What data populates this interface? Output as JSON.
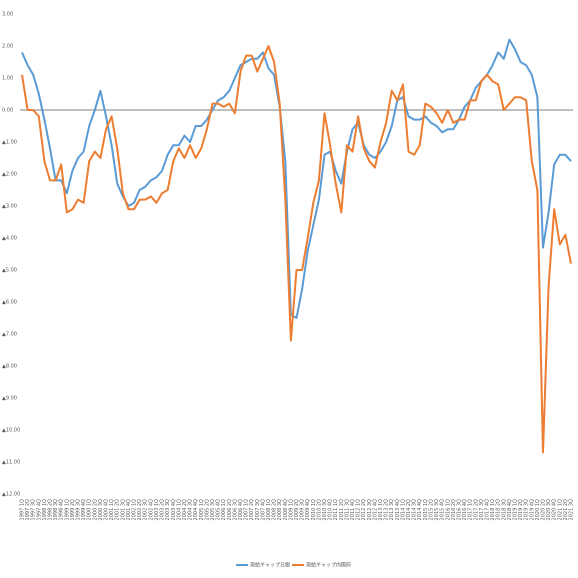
{
  "chart_data": {
    "type": "line",
    "categories": [
      "1997 1Q",
      "1997 2Q",
      "1997 3Q",
      "1997 4Q",
      "1998 1Q",
      "1998 2Q",
      "1998 3Q",
      "1998 4Q",
      "1999 1Q",
      "1999 2Q",
      "1999 3Q",
      "1999 4Q",
      "2000 1Q",
      "2000 2Q",
      "2000 3Q",
      "2000 4Q",
      "2001 1Q",
      "2001 2Q",
      "2001 3Q",
      "2001 4Q",
      "2002 1Q",
      "2002 2Q",
      "2002 3Q",
      "2002 4Q",
      "2003 1Q",
      "2003 2Q",
      "2003 3Q",
      "2003 4Q",
      "2004 1Q",
      "2004 2Q",
      "2004 3Q",
      "2004 4Q",
      "2005 1Q",
      "2005 2Q",
      "2005 3Q",
      "2005 4Q",
      "2006 1Q",
      "2006 2Q",
      "2006 3Q",
      "2006 4Q",
      "2007 1Q",
      "2007 2Q",
      "2007 3Q",
      "2007 4Q",
      "2008 1Q",
      "2008 2Q",
      "2008 3Q",
      "2008 4Q",
      "2009 1Q",
      "2009 2Q",
      "2009 3Q",
      "2009 4Q",
      "2010 1Q",
      "2010 2Q",
      "2010 3Q",
      "2010 4Q",
      "2011 1Q",
      "2011 2Q",
      "2011 3Q",
      "2011 4Q",
      "2012 1Q",
      "2012 2Q",
      "2012 3Q",
      "2012 4Q",
      "2013 1Q",
      "2013 2Q",
      "2013 3Q",
      "2013 4Q",
      "2014 1Q",
      "2014 2Q",
      "2014 3Q",
      "2014 4Q",
      "2015 1Q",
      "2015 2Q",
      "2015 3Q",
      "2015 4Q",
      "2016 1Q",
      "2016 2Q",
      "2016 3Q",
      "2016 4Q",
      "2017 1Q",
      "2017 2Q",
      "2017 3Q",
      "2017 4Q",
      "2018 1Q",
      "2018 2Q",
      "2018 3Q",
      "2018 4Q",
      "2019 1Q",
      "2019 2Q",
      "2019 3Q",
      "2019 4Q",
      "2020 1Q",
      "2020 2Q",
      "2020 3Q",
      "2020 4Q",
      "2021 1Q",
      "2021 2Q",
      "2021 3Q"
    ],
    "series": [
      {
        "name": "需給ギャップ日銀",
        "color": "#5b9bd5",
        "values": [
          1.8,
          1.4,
          1.1,
          0.5,
          -0.3,
          -1.2,
          -2.2,
          -2.2,
          -2.6,
          -1.9,
          -1.5,
          -1.3,
          -0.5,
          0.0,
          0.6,
          -0.2,
          -1.1,
          -2.3,
          -2.7,
          -3.0,
          -2.9,
          -2.5,
          -2.4,
          -2.2,
          -2.1,
          -1.9,
          -1.4,
          -1.1,
          -1.1,
          -0.8,
          -1.0,
          -0.5,
          -0.5,
          -0.3,
          0.0,
          0.3,
          0.4,
          0.6,
          1.0,
          1.4,
          1.5,
          1.6,
          1.6,
          1.8,
          1.3,
          1.1,
          0.1,
          -1.6,
          -6.4,
          -6.5,
          -5.6,
          -4.4,
          -3.6,
          -2.8,
          -1.4,
          -1.3,
          -1.9,
          -2.3,
          -1.3,
          -0.6,
          -0.4,
          -1.1,
          -1.4,
          -1.5,
          -1.3,
          -1.0,
          -0.5,
          0.3,
          0.4,
          -0.2,
          -0.3,
          -0.3,
          -0.2,
          -0.4,
          -0.5,
          -0.7,
          -0.6,
          -0.6,
          -0.3,
          0.1,
          0.3,
          0.7,
          0.9,
          1.1,
          1.4,
          1.8,
          1.6,
          2.2,
          1.9,
          1.5,
          1.4,
          1.1,
          0.4,
          -4.3,
          -3.2,
          -1.7,
          -1.4,
          -1.4,
          -1.6
        ]
      },
      {
        "name": "需給ギャップ内閣府",
        "color": "#ed7d31",
        "values": [
          1.1,
          0.0,
          0.0,
          -0.2,
          -1.6,
          -2.2,
          -2.2,
          -1.7,
          -3.2,
          -3.1,
          -2.8,
          -2.9,
          -1.6,
          -1.3,
          -1.5,
          -0.6,
          -0.2,
          -1.2,
          -2.6,
          -3.1,
          -3.1,
          -2.8,
          -2.8,
          -2.7,
          -2.9,
          -2.6,
          -2.5,
          -1.6,
          -1.2,
          -1.5,
          -1.1,
          -1.5,
          -1.2,
          -0.6,
          0.2,
          0.2,
          0.1,
          0.2,
          -0.1,
          1.2,
          1.7,
          1.7,
          1.2,
          1.6,
          2.0,
          1.5,
          0.2,
          -2.8,
          -7.2,
          -5.0,
          -5.0,
          -4.0,
          -2.9,
          -2.2,
          -0.1,
          -1.1,
          -2.3,
          -3.2,
          -1.1,
          -1.3,
          -0.2,
          -1.2,
          -1.6,
          -1.8,
          -1.0,
          -0.4,
          0.6,
          0.3,
          0.8,
          -1.3,
          -1.4,
          -1.1,
          0.2,
          0.1,
          -0.1,
          -0.4,
          0.0,
          -0.4,
          -0.3,
          -0.3,
          0.3,
          0.3,
          0.9,
          1.1,
          0.9,
          0.8,
          0.0,
          0.2,
          0.4,
          0.4,
          0.3,
          -1.6,
          -2.5,
          -10.7,
          -5.5,
          -3.1,
          -4.2,
          -3.9,
          -4.8
        ]
      }
    ],
    "ylim": [
      -12,
      3
    ],
    "yticks": [
      {
        "value": 3,
        "label": "3.00"
      },
      {
        "value": 2,
        "label": "2.00"
      },
      {
        "value": 1,
        "label": "1.00"
      },
      {
        "value": 0,
        "label": "0.00"
      },
      {
        "value": -1,
        "label": "▲1.00"
      },
      {
        "value": -2,
        "label": "▲2.00"
      },
      {
        "value": -3,
        "label": "▲3.00"
      },
      {
        "value": -4,
        "label": "▲4.00"
      },
      {
        "value": -5,
        "label": "▲5.00"
      },
      {
        "value": -6,
        "label": "▲6.00"
      },
      {
        "value": -7,
        "label": "▲7.00"
      },
      {
        "value": -8,
        "label": "▲8.00"
      },
      {
        "value": -9,
        "label": "▲9.00"
      },
      {
        "value": -10,
        "label": "▲10.00"
      },
      {
        "value": -11,
        "label": "▲11.00"
      },
      {
        "value": -12,
        "label": "▲12.00"
      }
    ],
    "legend": "bottom"
  }
}
